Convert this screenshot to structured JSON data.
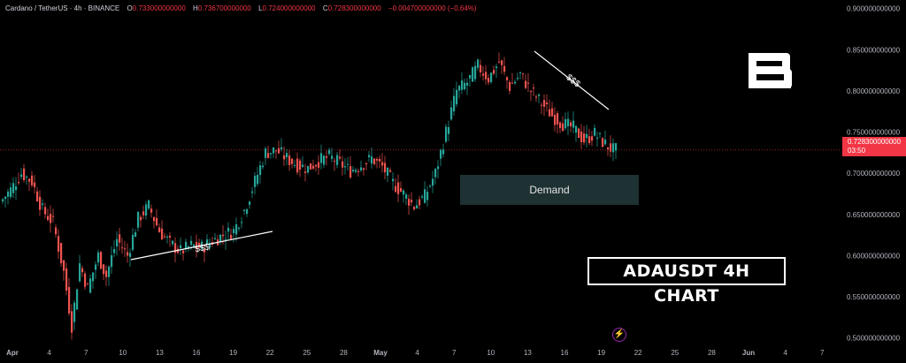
{
  "header": {
    "symbol": "Cardano / TetherUS · 4h · BINANCE",
    "open_label": "O",
    "open": "0.733000000000",
    "high_label": "H",
    "high": "0.736700000000",
    "low_label": "L",
    "low": "0.724000000000",
    "close_label": "C",
    "close": "0.728300000000",
    "change": "−0.004700000000 (−0.64%)"
  },
  "price_label": {
    "price": "0.728300000000",
    "countdown": "03:50"
  },
  "demand_label": "Demand",
  "chart_title": "ADAUSDT 4H CHART",
  "annotations": {
    "lower_liquidity": "$$$",
    "upper_liquidity": "$$$"
  },
  "colors": {
    "up": "#26a69a",
    "down": "#ef5350",
    "price_line": "#f23645",
    "demand_zone": "#1e3133"
  },
  "icons": {
    "logo": "brand-b-logo",
    "bolt": "lightning-icon"
  },
  "chart_data": {
    "type": "candlestick",
    "title": "",
    "x_ticks": [
      "Apr",
      "4",
      "7",
      "10",
      "13",
      "16",
      "19",
      "22",
      "25",
      "28",
      "May",
      "4",
      "7",
      "10",
      "13",
      "16",
      "19",
      "22",
      "25",
      "28",
      "Jun",
      "4",
      "7"
    ],
    "y_ticks": [
      "0.900000000000",
      "0.850000000000",
      "0.800000000000",
      "0.750000000000",
      "0.700000000000",
      "0.650000000000",
      "0.600000000000",
      "0.550000000000",
      "0.500000000000"
    ],
    "ylim": [
      0.49,
      0.905
    ],
    "current_price": 0.7283,
    "demand_zone": [
      0.652,
      0.688
    ],
    "trend_points": [
      [
        0,
        0.665
      ],
      [
        4,
        0.68
      ],
      [
        8,
        0.7
      ],
      [
        12,
        0.69
      ],
      [
        16,
        0.655
      ],
      [
        20,
        0.64
      ],
      [
        24,
        0.58
      ],
      [
        27,
        0.515
      ],
      [
        30,
        0.59
      ],
      [
        33,
        0.56
      ],
      [
        37,
        0.6
      ],
      [
        40,
        0.575
      ],
      [
        44,
        0.62
      ],
      [
        48,
        0.6
      ],
      [
        52,
        0.645
      ],
      [
        56,
        0.66
      ],
      [
        60,
        0.63
      ],
      [
        64,
        0.615
      ],
      [
        68,
        0.605
      ],
      [
        72,
        0.612
      ],
      [
        76,
        0.61
      ],
      [
        80,
        0.618
      ],
      [
        84,
        0.625
      ],
      [
        88,
        0.63
      ],
      [
        92,
        0.655
      ],
      [
        96,
        0.69
      ],
      [
        100,
        0.725
      ],
      [
        104,
        0.728
      ],
      [
        108,
        0.718
      ],
      [
        112,
        0.71
      ],
      [
        116,
        0.706
      ],
      [
        120,
        0.715
      ],
      [
        124,
        0.72
      ],
      [
        128,
        0.712
      ],
      [
        132,
        0.703
      ],
      [
        136,
        0.71
      ],
      [
        140,
        0.718
      ],
      [
        144,
        0.708
      ],
      [
        148,
        0.688
      ],
      [
        152,
        0.675
      ],
      [
        156,
        0.66
      ],
      [
        160,
        0.672
      ],
      [
        164,
        0.7
      ],
      [
        168,
        0.75
      ],
      [
        172,
        0.8
      ],
      [
        176,
        0.81
      ],
      [
        180,
        0.83
      ],
      [
        184,
        0.815
      ],
      [
        188,
        0.835
      ],
      [
        192,
        0.805
      ],
      [
        196,
        0.82
      ],
      [
        200,
        0.8
      ],
      [
        204,
        0.785
      ],
      [
        208,
        0.77
      ],
      [
        212,
        0.76
      ],
      [
        216,
        0.755
      ],
      [
        220,
        0.74
      ],
      [
        224,
        0.748
      ],
      [
        228,
        0.735
      ],
      [
        231,
        0.728
      ]
    ]
  }
}
